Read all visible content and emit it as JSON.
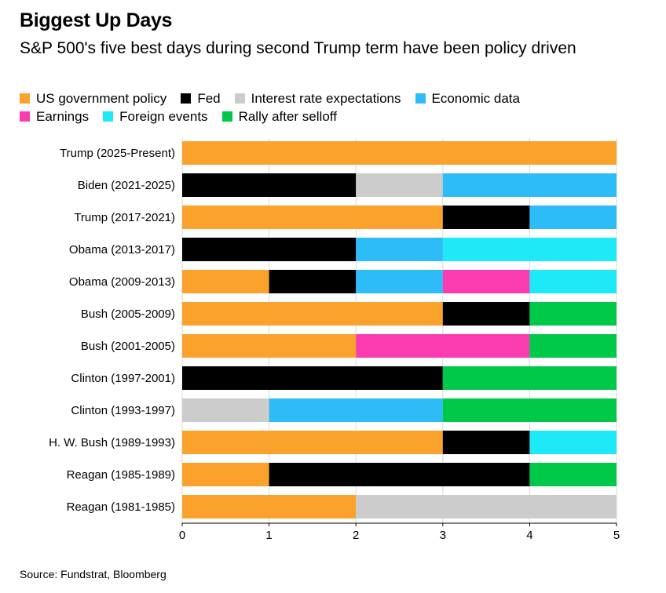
{
  "title": "Biggest Up Days",
  "subtitle": "S&P 500's five best days during second Trump term have been policy driven",
  "source": "Source: Fundstrat, Bloomberg",
  "legend": {
    "row1": [
      {
        "name": "US government policy",
        "color": "#fba22c"
      },
      {
        "name": "Fed",
        "color": "#000000"
      },
      {
        "name": "Interest rate expectations",
        "color": "#cccccc"
      },
      {
        "name": "Economic data",
        "color": "#2dbcf7"
      }
    ],
    "row2": [
      {
        "name": "Earnings",
        "color": "#fb3cb0"
      },
      {
        "name": "Foreign events",
        "color": "#1de9f7"
      },
      {
        "name": "Rally after selloff",
        "color": "#00c94a"
      }
    ]
  },
  "chart_data": {
    "type": "bar",
    "orientation": "horizontal",
    "stacked": true,
    "categories": [
      "Trump (2025-Present)",
      "Biden (2021-2025)",
      "Trump (2017-2021)",
      "Obama (2013-2017)",
      "Obama (2009-2013)",
      "Bush (2005-2009)",
      "Bush (2001-2005)",
      "Clinton (1997-2001)",
      "Clinton (1993-1997)",
      "H. W. Bush (1989-1993)",
      "Reagan (1985-1989)",
      "Reagan (1981-1985)"
    ],
    "series": [
      {
        "name": "US government policy",
        "color": "#fba22c",
        "values": [
          5,
          0,
          3,
          0,
          1,
          3,
          2,
          0,
          0,
          3,
          1,
          2
        ]
      },
      {
        "name": "Fed",
        "color": "#000000",
        "values": [
          0,
          2,
          1,
          2,
          1,
          1,
          0,
          3,
          0,
          1,
          3,
          0
        ]
      },
      {
        "name": "Interest rate expectations",
        "color": "#cccccc",
        "values": [
          0,
          1,
          0,
          0,
          0,
          0,
          0,
          0,
          1,
          0,
          0,
          3
        ]
      },
      {
        "name": "Economic data",
        "color": "#2dbcf7",
        "values": [
          0,
          2,
          1,
          1,
          1,
          0,
          0,
          0,
          2,
          0,
          0,
          0
        ]
      },
      {
        "name": "Earnings",
        "color": "#fb3cb0",
        "values": [
          0,
          0,
          0,
          0,
          1,
          0,
          2,
          0,
          0,
          0,
          0,
          0
        ]
      },
      {
        "name": "Foreign events",
        "color": "#1de9f7",
        "values": [
          0,
          0,
          0,
          2,
          1,
          0,
          0,
          0,
          0,
          1,
          0,
          0
        ]
      },
      {
        "name": "Rally after selloff",
        "color": "#00c94a",
        "values": [
          0,
          0,
          0,
          0,
          0,
          1,
          1,
          2,
          2,
          0,
          1,
          0
        ]
      }
    ],
    "xlim": [
      0,
      5
    ],
    "xticks": [
      "0",
      "1",
      "2",
      "3",
      "4",
      "5"
    ],
    "grid": true
  }
}
